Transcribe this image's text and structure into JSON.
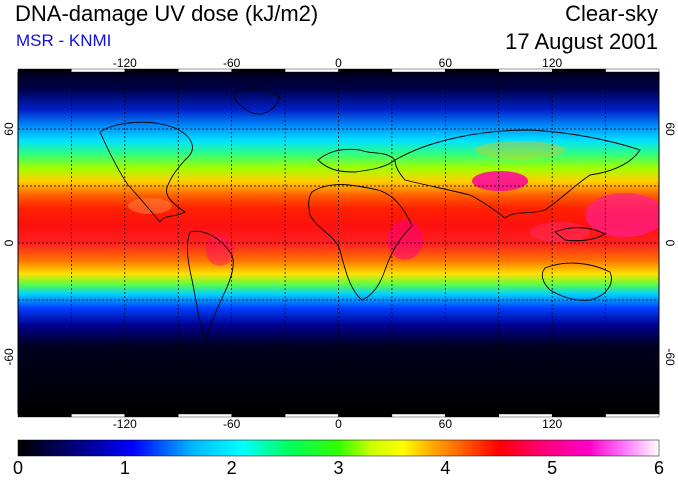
{
  "header": {
    "title": "DNA-damage UV dose (kJ/m2)",
    "source": "MSR - KNMI",
    "sky_condition": "Clear-sky",
    "date": "17 August 2001"
  },
  "map": {
    "projection": "equirectangular",
    "lon_range": [
      -180,
      180
    ],
    "lat_range": [
      -90,
      90
    ],
    "lon_ticks": [
      "-120",
      "-60",
      "0",
      "60",
      "120"
    ],
    "lat_ticks_left": [
      "60",
      "0",
      "-60"
    ],
    "lat_ticks_right": [
      "60",
      "0",
      "-60"
    ],
    "grid_lon_values": [
      -150,
      -120,
      -90,
      -60,
      -30,
      0,
      30,
      60,
      90,
      120,
      150
    ],
    "grid_lat_values": [
      -60,
      -30,
      0,
      30,
      60
    ],
    "grid": "dashed"
  },
  "colorbar": {
    "min": 0,
    "max": 6,
    "tick_labels": [
      "0",
      "1",
      "2",
      "3",
      "4",
      "5",
      "6"
    ],
    "colors": [
      "#000000",
      "#00008c",
      "#0000ff",
      "#00b4ff",
      "#00ffff",
      "#00ff64",
      "#32ff00",
      "#c8ff00",
      "#ffff00",
      "#ffb400",
      "#ff6400",
      "#ff0000",
      "#ff0078",
      "#ff00c8",
      "#ff80ff",
      "#ffffff"
    ]
  }
}
